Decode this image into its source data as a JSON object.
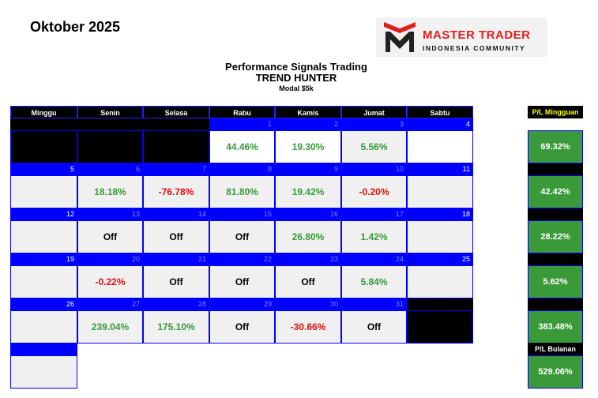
{
  "month_title": "Oktober 2025",
  "logo": {
    "line1": "MASTER TRADER",
    "line2": "INDONESIA COMMUNITY"
  },
  "header": {
    "line1": "Performance Signals Trading",
    "line2": "TREND HUNTER",
    "line3": "Modal $5k"
  },
  "days": [
    "Minggu",
    "Senin",
    "Selasa",
    "Rabu",
    "Kamis",
    "Jumat",
    "Sabtu"
  ],
  "weeks": [
    {
      "dates": [
        "",
        "",
        "",
        "1",
        "2",
        "3",
        "4"
      ],
      "cells": [
        "",
        "",
        "",
        "44.46%",
        "19.30%",
        "5.56%",
        ""
      ]
    },
    {
      "dates": [
        "5",
        "6",
        "7",
        "8",
        "9",
        "10",
        "11"
      ],
      "cells": [
        "",
        "18.18%",
        "-76.78%",
        "81.80%",
        "19.42%",
        "-0.20%",
        ""
      ]
    },
    {
      "dates": [
        "12",
        "13",
        "14",
        "15",
        "16",
        "17",
        "18"
      ],
      "cells": [
        "",
        "Off",
        "Off",
        "Off",
        "26.80%",
        "1.42%",
        ""
      ]
    },
    {
      "dates": [
        "19",
        "20",
        "21",
        "22",
        "23",
        "24",
        "25"
      ],
      "cells": [
        "",
        "-0.22%",
        "Off",
        "Off",
        "Off",
        "5.84%",
        ""
      ]
    },
    {
      "dates": [
        "26",
        "27",
        "28",
        "29",
        "30",
        "31",
        ""
      ],
      "cells": [
        "",
        "239.04%",
        "175.10%",
        "Off",
        "-30.66%",
        "Off",
        ""
      ]
    }
  ],
  "pl": {
    "weekly_label": "P/L Mingguan",
    "weekly": [
      "69.32%",
      "42.42%",
      "28.22%",
      "5.62%",
      "383.48%"
    ],
    "monthly_label": "P/L Bulanan",
    "monthly": "529.06%"
  },
  "colors": {
    "positive": "#3a9a3a",
    "negative": "#e01010",
    "band": "#0000ff",
    "pl_bg": "#3a9a3a"
  }
}
